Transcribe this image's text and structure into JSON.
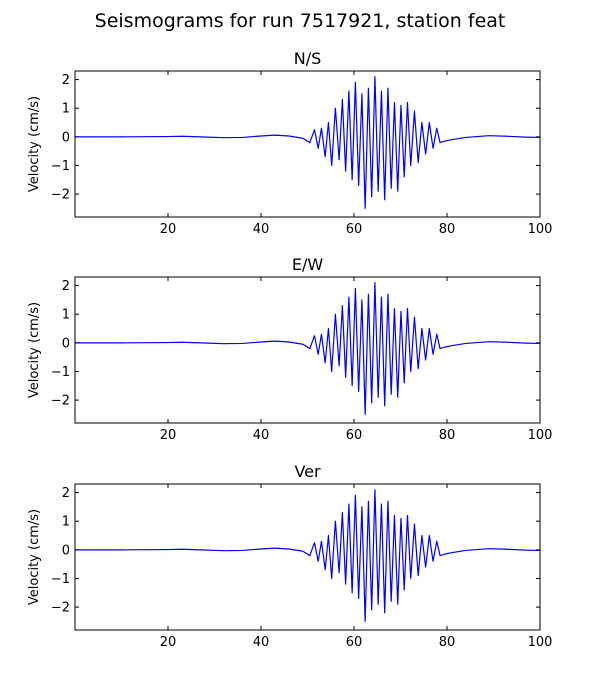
{
  "figure": {
    "title": "Seismograms for run 7517921, station feat"
  },
  "chart_data": [
    {
      "type": "line",
      "title": "N/S",
      "xlabel": "",
      "ylabel": "Velocity (cm/s)",
      "xlim": [
        0,
        100
      ],
      "ylim": [
        -2.8,
        2.3
      ],
      "xticks": [
        20,
        40,
        60,
        80,
        100
      ],
      "yticks": [
        -2,
        -1,
        0,
        1,
        2
      ],
      "grid": false,
      "color": "#0000ff",
      "series": [
        {
          "x": [
            0,
            10,
            20,
            23,
            27,
            32,
            36,
            40,
            43,
            46,
            49,
            50.5,
            51.5,
            52.3,
            53,
            53.8,
            54.5,
            55.2,
            56,
            56.8,
            57.5,
            58.2,
            58.9,
            59.6,
            60.3,
            61,
            61.7,
            62.4,
            63.1,
            63.8,
            64.5,
            65.2,
            65.9,
            66.6,
            67.3,
            68,
            68.7,
            69.4,
            70.1,
            70.8,
            71.5,
            72.2,
            73,
            73.8,
            74.6,
            75.4,
            76.2,
            77,
            77.8,
            78.5,
            79.5,
            81,
            84,
            89,
            93,
            97,
            100
          ],
          "y": [
            0,
            0,
            0.01,
            0.02,
            0.0,
            -0.03,
            -0.02,
            0.03,
            0.06,
            0.03,
            -0.05,
            -0.2,
            0.25,
            -0.4,
            0.3,
            -0.7,
            0.5,
            -1.0,
            1.0,
            -0.8,
            1.3,
            -1.2,
            1.6,
            -1.5,
            1.9,
            -1.7,
            1.5,
            -2.5,
            1.7,
            -2.1,
            2.1,
            -1.9,
            1.6,
            -2.2,
            1.7,
            -1.8,
            1.2,
            -1.9,
            1.1,
            -1.4,
            1.2,
            -1.0,
            0.9,
            -0.9,
            0.5,
            -0.6,
            0.5,
            -0.4,
            0.3,
            -0.2,
            -0.15,
            -0.1,
            -0.02,
            0.04,
            0.02,
            -0.01,
            -0.02
          ]
        }
      ]
    },
    {
      "type": "line",
      "title": "E/W",
      "xlabel": "",
      "ylabel": "Velocity (cm/s)",
      "xlim": [
        0,
        100
      ],
      "ylim": [
        -2.8,
        2.3
      ],
      "xticks": [
        20,
        40,
        60,
        80,
        100
      ],
      "yticks": [
        -2,
        -1,
        0,
        1,
        2
      ],
      "grid": false,
      "color": "#0000ff",
      "series": [
        {
          "x": [
            0,
            10,
            20,
            23,
            27,
            32,
            36,
            40,
            43,
            46,
            49,
            50.5,
            51.5,
            52.3,
            53,
            53.8,
            54.5,
            55.2,
            56,
            56.8,
            57.5,
            58.2,
            58.9,
            59.6,
            60.3,
            61,
            61.7,
            62.4,
            63.1,
            63.8,
            64.5,
            65.2,
            65.9,
            66.6,
            67.3,
            68,
            68.7,
            69.4,
            70.1,
            70.8,
            71.5,
            72.2,
            73,
            73.8,
            74.6,
            75.4,
            76.2,
            77,
            77.8,
            78.5,
            79.5,
            81,
            84,
            89,
            93,
            97,
            100
          ],
          "y": [
            0,
            0,
            0.01,
            0.02,
            0.0,
            -0.03,
            -0.02,
            0.03,
            0.06,
            0.03,
            -0.05,
            -0.2,
            0.25,
            -0.4,
            0.3,
            -0.7,
            0.5,
            -1.0,
            1.0,
            -0.8,
            1.3,
            -1.2,
            1.6,
            -1.5,
            1.9,
            -1.7,
            1.5,
            -2.5,
            1.7,
            -2.1,
            2.1,
            -1.9,
            1.6,
            -2.2,
            1.7,
            -1.8,
            1.2,
            -1.9,
            1.1,
            -1.4,
            1.2,
            -1.0,
            0.9,
            -0.9,
            0.5,
            -0.6,
            0.5,
            -0.4,
            0.3,
            -0.2,
            -0.15,
            -0.1,
            -0.02,
            0.04,
            0.02,
            -0.01,
            -0.02
          ]
        }
      ]
    },
    {
      "type": "line",
      "title": "Ver",
      "xlabel": "",
      "ylabel": "Velocity (cm/s)",
      "xlim": [
        0,
        100
      ],
      "ylim": [
        -2.8,
        2.3
      ],
      "xticks": [
        20,
        40,
        60,
        80,
        100
      ],
      "yticks": [
        -2,
        -1,
        0,
        1,
        2
      ],
      "grid": false,
      "color": "#0000ff",
      "series": [
        {
          "x": [
            0,
            10,
            20,
            23,
            27,
            32,
            36,
            40,
            43,
            46,
            49,
            50.5,
            51.5,
            52.3,
            53,
            53.8,
            54.5,
            55.2,
            56,
            56.8,
            57.5,
            58.2,
            58.9,
            59.6,
            60.3,
            61,
            61.7,
            62.4,
            63.1,
            63.8,
            64.5,
            65.2,
            65.9,
            66.6,
            67.3,
            68,
            68.7,
            69.4,
            70.1,
            70.8,
            71.5,
            72.2,
            73,
            73.8,
            74.6,
            75.4,
            76.2,
            77,
            77.8,
            78.5,
            79.5,
            81,
            84,
            89,
            93,
            97,
            100
          ],
          "y": [
            0,
            0,
            0.01,
            0.02,
            0.0,
            -0.03,
            -0.02,
            0.03,
            0.06,
            0.03,
            -0.05,
            -0.2,
            0.25,
            -0.4,
            0.3,
            -0.7,
            0.5,
            -1.0,
            1.0,
            -0.8,
            1.3,
            -1.2,
            1.6,
            -1.5,
            1.9,
            -1.7,
            1.5,
            -2.5,
            1.7,
            -2.1,
            2.1,
            -1.9,
            1.6,
            -2.2,
            1.7,
            -1.8,
            1.2,
            -1.9,
            1.1,
            -1.4,
            1.2,
            -1.0,
            0.9,
            -0.9,
            0.5,
            -0.6,
            0.5,
            -0.4,
            0.3,
            -0.2,
            -0.15,
            -0.1,
            -0.02,
            0.04,
            0.02,
            -0.01,
            -0.02
          ]
        }
      ]
    }
  ]
}
